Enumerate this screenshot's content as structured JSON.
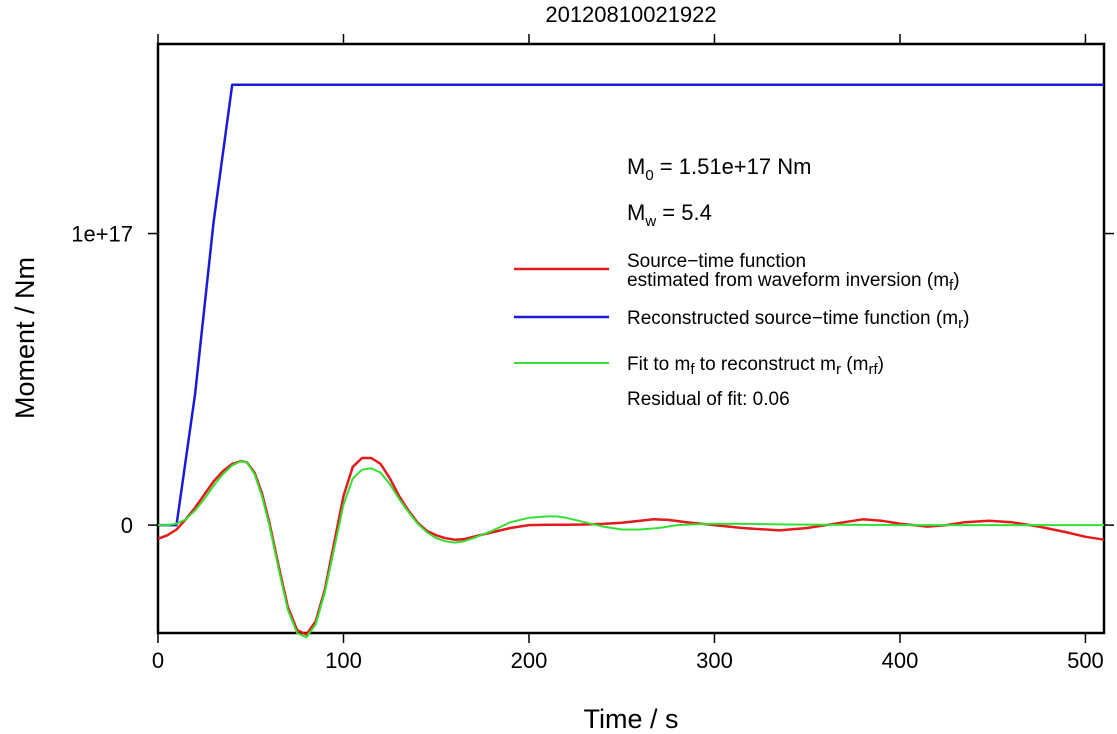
{
  "chart_data": {
    "type": "line",
    "title": "20120810021922",
    "xlabel": "Time / s",
    "ylabel": "Moment / Nm",
    "xlim": [
      0,
      510
    ],
    "ylim": [
      -3.7e+16,
      1.65e+17
    ],
    "x_ticks": [
      {
        "value": 0,
        "label": "0"
      },
      {
        "value": 100,
        "label": "100"
      },
      {
        "value": 200,
        "label": "200"
      },
      {
        "value": 300,
        "label": "300"
      },
      {
        "value": 400,
        "label": "400"
      },
      {
        "value": 500,
        "label": "500"
      }
    ],
    "y_ticks": [
      {
        "value": 0,
        "label": "0"
      },
      {
        "value": 1e+17,
        "label": "1e+17"
      }
    ],
    "grid": false,
    "legend_position": "right",
    "annotations": {
      "m0": {
        "prefix": "M",
        "sub": "0",
        "text": " = 1.51e+17 Nm"
      },
      "mw": {
        "prefix": "M",
        "sub": "w",
        "text": " = 5.4"
      },
      "residual": "Residual of fit: 0.06"
    },
    "legend": [
      {
        "line1": "Source−time function",
        "line2": "estimated from waveform inversion (m",
        "sub": "f",
        "suffix": ")",
        "color": "#e41a1c"
      },
      {
        "line1": "Reconstructed source−time function (m",
        "sub": "r",
        "suffix": ")",
        "color": "#1a1adb"
      },
      {
        "line1": "Fit to m",
        "sub": "f",
        "mid": " to reconstruct m",
        "sub2": "r",
        "mid2": " (m",
        "sub3": "rf",
        "suffix": ")",
        "color": "#33e033"
      }
    ],
    "series": [
      {
        "color": "#e41a1c",
        "x": [
          0,
          5,
          10,
          15,
          20,
          25,
          30,
          35,
          40,
          45,
          48,
          52,
          56,
          60,
          65,
          70,
          75,
          80,
          85,
          90,
          95,
          100,
          105,
          110,
          115,
          120,
          125,
          130,
          135,
          140,
          145,
          150,
          155,
          160,
          165,
          170,
          180,
          190,
          200,
          210,
          220,
          230,
          240,
          250,
          260,
          267,
          275,
          285,
          300,
          315,
          335,
          350,
          365,
          380,
          390,
          400,
          415,
          425,
          435,
          448,
          460,
          475,
          490,
          500,
          510
        ],
        "y": [
          -4700000000000000.0,
          -3500000000000000.0,
          -1500000000000000.0,
          2000000000000000.0,
          6000000000000000.0,
          1.05e+16,
          1.5e+16,
          1.85e+16,
          2.1e+16,
          2.2e+16,
          2.15e+16,
          1.8e+16,
          1.1e+16,
          1000000000000000.0,
          -1.4e+16,
          -2.8e+16,
          -3.6e+16,
          -3.75e+16,
          -3.3e+16,
          -2.2e+16,
          -6000000000000000.0,
          1e+16,
          2e+16,
          2.3e+16,
          2.3e+16,
          2.1e+16,
          1.6e+16,
          1e+16,
          5000000000000000.0,
          800000000000000.0,
          -2000000000000000.0,
          -3500000000000000.0,
          -4500000000000000.0,
          -5000000000000000.0,
          -4800000000000000.0,
          -4000000000000000.0,
          -2500000000000000.0,
          -1000000000000000.0,
          0,
          100000000000000.0,
          150000000000000.0,
          200000000000000.0,
          400000000000000.0,
          800000000000000.0,
          1500000000000000.0,
          2000000000000000.0,
          1800000000000000.0,
          1000000000000000.0,
          0,
          -1000000000000000.0,
          -1800000000000000.0,
          -1000000000000000.0,
          500000000000000.0,
          2000000000000000.0,
          1500000000000000.0,
          500000000000000.0,
          -500000000000000.0,
          0,
          1000000000000000.0,
          1500000000000000.0,
          1000000000000000.0,
          -500000000000000.0,
          -2500000000000000.0,
          -4000000000000000.0,
          -5000000000000000.0
        ]
      },
      {
        "color": "#1a1adb",
        "x": [
          0,
          10,
          20,
          30,
          40,
          510
        ],
        "y": [
          0,
          0,
          4.5e+16,
          1.04e+17,
          1.51e+17,
          1.51e+17
        ]
      },
      {
        "color": "#33e033",
        "x": [
          0,
          5,
          10,
          15,
          20,
          25,
          30,
          35,
          40,
          45,
          48,
          52,
          56,
          60,
          65,
          70,
          75,
          80,
          85,
          90,
          95,
          100,
          105,
          110,
          115,
          120,
          125,
          130,
          135,
          140,
          145,
          150,
          155,
          160,
          165,
          170,
          180,
          190,
          200,
          210,
          215,
          220,
          230,
          240,
          250,
          260,
          270,
          280,
          290,
          300,
          320,
          340,
          360,
          400,
          450,
          510
        ],
        "y": [
          0,
          0,
          500000000000000.0,
          2000000000000000.0,
          5000000000000000.0,
          9000000000000000.0,
          1.35e+16,
          1.75e+16,
          2.05e+16,
          2.2e+16,
          2.15e+16,
          1.75e+16,
          1e+16,
          0,
          -1.5e+16,
          -2.9e+16,
          -3.7e+16,
          -3.85e+16,
          -3.4e+16,
          -2.3e+16,
          -8000000000000000.0,
          7000000000000000.0,
          1.6e+16,
          1.9e+16,
          1.95e+16,
          1.8e+16,
          1.4e+16,
          9000000000000000.0,
          4500000000000000.0,
          500000000000000.0,
          -2500000000000000.0,
          -4500000000000000.0,
          -5500000000000000.0,
          -6000000000000000.0,
          -5500000000000000.0,
          -4500000000000000.0,
          -2000000000000000.0,
          1000000000000000.0,
          2500000000000000.0,
          3000000000000000.0,
          3000000000000000.0,
          2500000000000000.0,
          1000000000000000.0,
          -500000000000000.0,
          -1500000000000000.0,
          -1500000000000000.0,
          -1000000000000000.0,
          0,
          300000000000000.0,
          500000000000000.0,
          400000000000000.0,
          200000000000000.0,
          100000000000000.0,
          0,
          0,
          0
        ]
      }
    ]
  }
}
